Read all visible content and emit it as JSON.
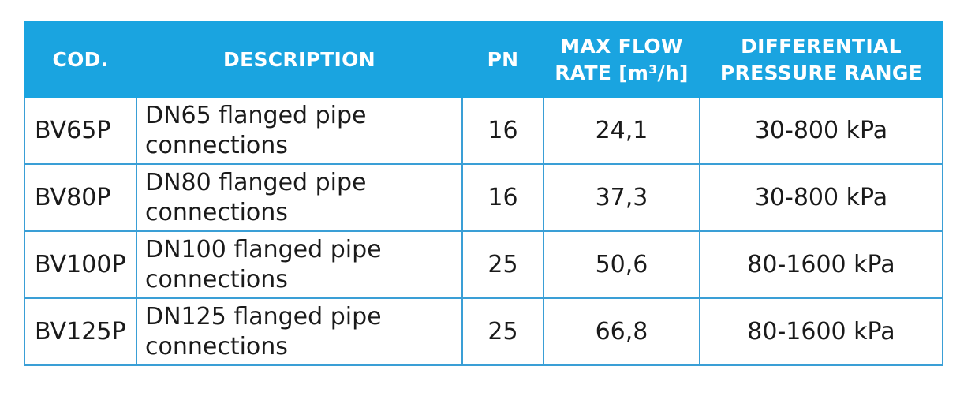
{
  "table": {
    "headers": {
      "cod": "COD.",
      "description": "DESCRIPTION",
      "pn": "PN",
      "max_flow_line1": "MAX FLOW",
      "max_flow_line2": "RATE [m³/h]",
      "diff_line1": "DIFFERENTIAL",
      "diff_line2": "PRESSURE RANGE"
    },
    "rows": [
      {
        "code": "BV65P",
        "desc_line1": "DN65 flanged pipe",
        "desc_line2": "connections",
        "pn": "16",
        "max_flow": "24,1",
        "pressure_range": "30-800 kPa"
      },
      {
        "code": "BV80P",
        "desc_line1": "DN80 flanged pipe",
        "desc_line2": "connections",
        "pn": "16",
        "max_flow": "37,3",
        "pressure_range": "30-800 kPa"
      },
      {
        "code": "BV100P",
        "desc_line1": "DN100 flanged pipe",
        "desc_line2": "connections",
        "pn": "25",
        "max_flow": "50,6",
        "pressure_range": "80-1600 kPa"
      },
      {
        "code": "BV125P",
        "desc_line1": "DN125 flanged pipe",
        "desc_line2": "connections",
        "pn": "25",
        "max_flow": "66,8",
        "pressure_range": "80-1600 kPa"
      }
    ]
  },
  "colors": {
    "header_background": "#1aa4e0",
    "header_text": "#ffffff",
    "border": "#3a9fd6",
    "body_text": "#1a1a1a"
  }
}
